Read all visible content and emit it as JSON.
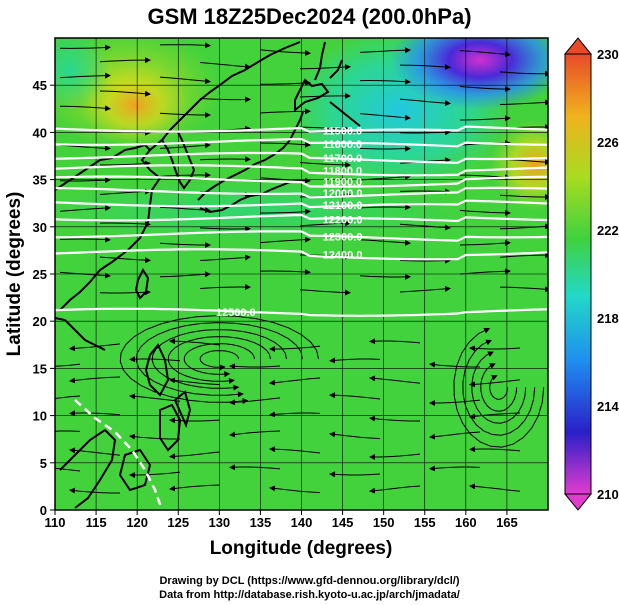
{
  "title": "GSM 18Z25Dec2024 (200.0hPa)",
  "credits": {
    "line1": "Drawing by DCL (https://www.gfd-dennou.org/library/dcl/)",
    "line2": "Data from http://database.rish.kyoto-u.ac.jp/arch/jmadata/"
  },
  "axes": {
    "xlabel": "Longitude (degrees)",
    "ylabel": "Latitude  (degrees)",
    "xlim": [
      110,
      170
    ],
    "ylim": [
      0,
      50
    ],
    "xticks": [
      "110",
      "115",
      "120",
      "125",
      "130",
      "135",
      "140",
      "145",
      "150",
      "155",
      "160",
      "165"
    ],
    "yticks": [
      "0",
      "5",
      "10",
      "15",
      "20",
      "25",
      "30",
      "35",
      "40",
      "45"
    ]
  },
  "colorbar": {
    "min": 210,
    "max": 230,
    "labels": [
      "230",
      "226",
      "222",
      "218",
      "214",
      "210"
    ],
    "stops": [
      "#e23ccf",
      "#2a1fc8",
      "#1f8df0",
      "#22d8c8",
      "#3fd23f",
      "#a8dc20",
      "#f0b21e",
      "#e84a28"
    ]
  },
  "contours": [
    {
      "label": "11500.0",
      "lat": 40.4
    },
    {
      "label": "11600.0",
      "lat": 39.0
    },
    {
      "label": "11700.0",
      "lat": 37.5
    },
    {
      "label": "11800.0",
      "lat": 36.2
    },
    {
      "label": "11900.0",
      "lat": 35.0
    },
    {
      "label": "12000.0",
      "lat": 33.8
    },
    {
      "label": "12100.0",
      "lat": 32.5
    },
    {
      "label": "12200.0",
      "lat": 31.0
    },
    {
      "label": "12300.0",
      "lat": 29.2
    },
    {
      "label": "12400.0",
      "lat": 27.3
    },
    {
      "label": "12500.0",
      "lat": 21.0
    }
  ]
}
